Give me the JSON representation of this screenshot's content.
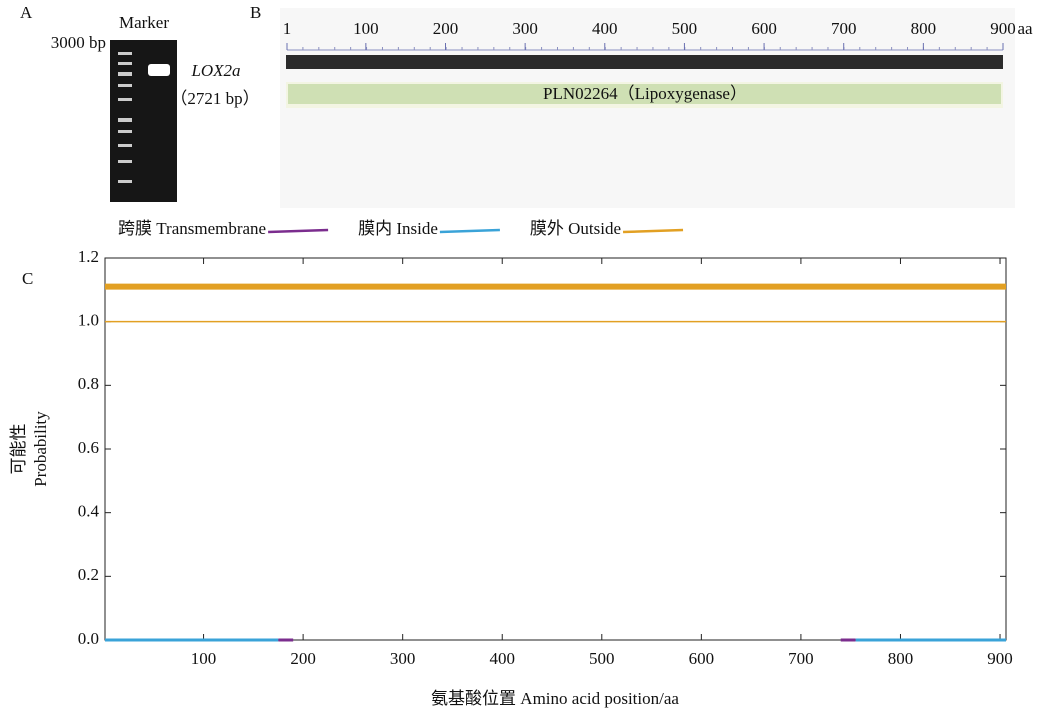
{
  "panel_a": {
    "letter": "A",
    "marker": "Marker",
    "size_label": "3000 bp",
    "gene": "LOX2a",
    "gene_size": "（2721 bp）"
  },
  "panel_b": {
    "letter": "B",
    "ticks": [
      1,
      100,
      200,
      300,
      400,
      500,
      600,
      700,
      800,
      900
    ],
    "unit": "aa",
    "domain": "PLN02264（Lipoxygenase）"
  },
  "chart_data": {
    "type": "line",
    "letter": "C",
    "xlabel": "氨基酸位置 Amino acid position/aa",
    "ylabel": [
      "可能性",
      "Probability"
    ],
    "xlim": [
      1,
      906
    ],
    "xticks": [
      100,
      200,
      300,
      400,
      500,
      600,
      700,
      800,
      900
    ],
    "ylim": [
      0,
      1.2
    ],
    "yticks": [
      {
        "value": 0,
        "label": "0.0"
      },
      0.2,
      0.4,
      0.6,
      0.8,
      {
        "value": 1,
        "label": "1.0"
      },
      1.2
    ],
    "series": [
      {
        "name": "跨膜 Transmembrane",
        "color": "#7b2d8e",
        "x": [
          175,
          190,
          191,
          740,
          755
        ],
        "values": [
          0,
          0,
          null,
          0,
          0
        ]
      },
      {
        "name": "膜内 Inside",
        "color": "#3aa3d8",
        "x": [
          1,
          175,
          176,
          755,
          906
        ],
        "values": [
          0,
          0,
          null,
          0,
          0
        ]
      },
      {
        "name": "膜外 Outside",
        "color": "#e2a023",
        "x": [
          1,
          906
        ],
        "values": [
          1,
          1
        ],
        "band_level": 1.11
      }
    ]
  }
}
